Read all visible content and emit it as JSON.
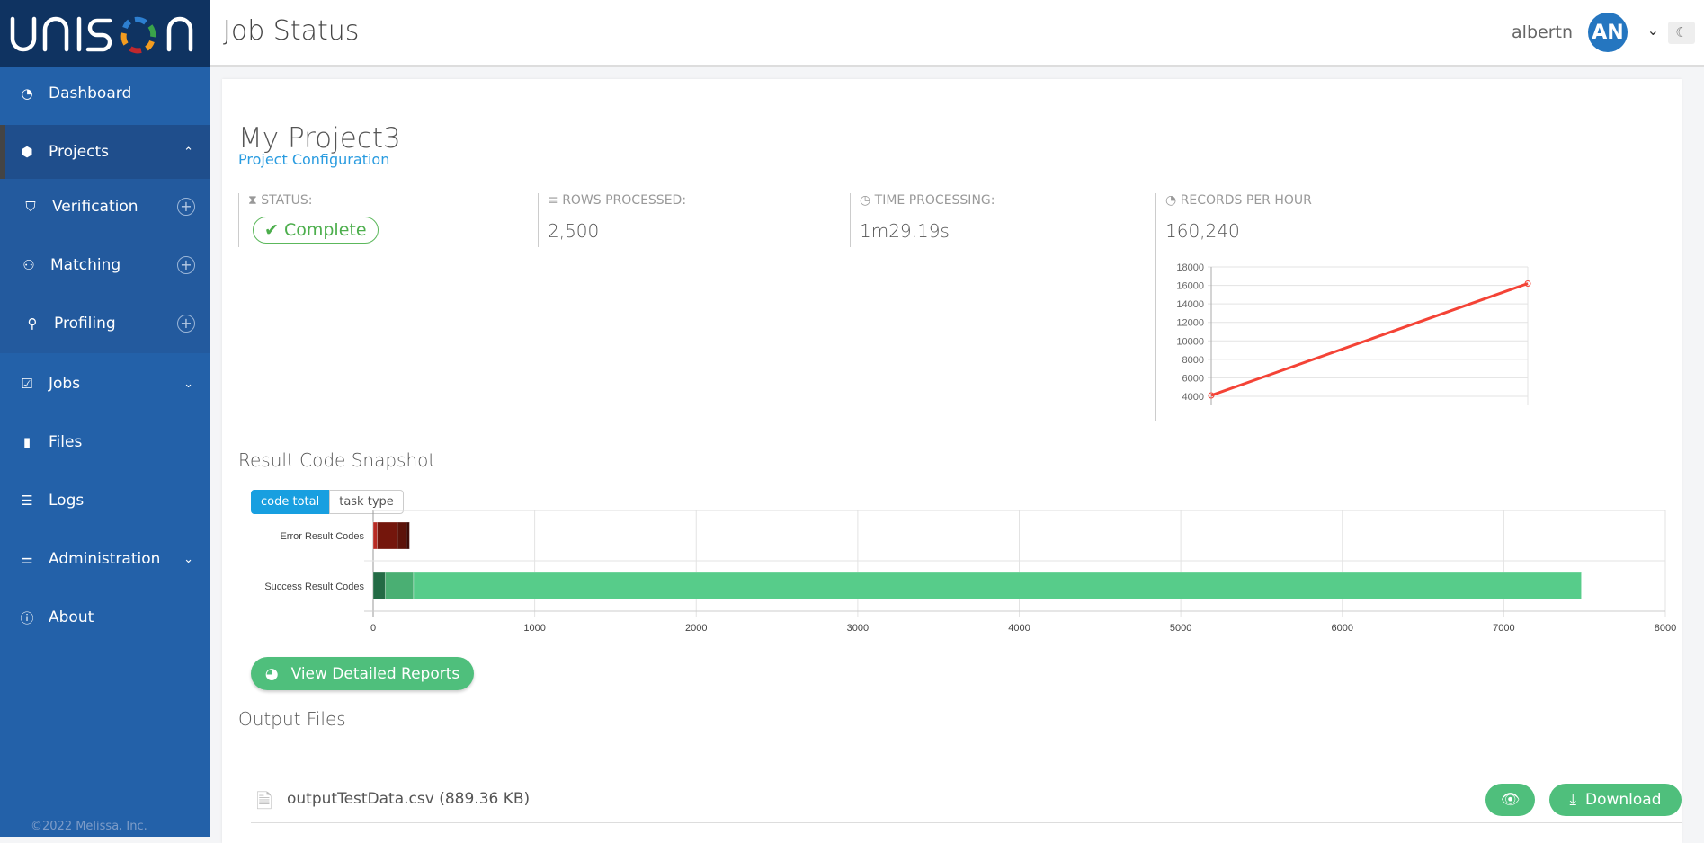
{
  "brand": {
    "logo_text": "UNISON",
    "footer": "©2022 Melissa, Inc."
  },
  "sidebar": {
    "items": [
      {
        "label": "Dashboard",
        "icon": "dashboard-icon"
      },
      {
        "label": "Projects",
        "icon": "cubes-icon",
        "expanded": true
      },
      {
        "label": "Verification",
        "icon": "shield-check-icon"
      },
      {
        "label": "Matching",
        "icon": "users-icon"
      },
      {
        "label": "Profiling",
        "icon": "user-search-icon"
      },
      {
        "label": "Jobs",
        "icon": "check-square-icon"
      },
      {
        "label": "Files",
        "icon": "file-icon"
      },
      {
        "label": "Logs",
        "icon": "list-icon"
      },
      {
        "label": "Administration",
        "icon": "sliders-icon"
      },
      {
        "label": "About",
        "icon": "info-icon"
      }
    ]
  },
  "header": {
    "title": "Job Status",
    "username": "albertn",
    "avatar_initials": "AN"
  },
  "project": {
    "name": "My Project3",
    "config_link": "Project Configuration"
  },
  "stats": [
    {
      "label": "Status:",
      "value": "Complete",
      "icon": "hourglass-icon"
    },
    {
      "label": "Rows Processed:",
      "value": "2,500",
      "icon": "bars-icon"
    },
    {
      "label": "Time Processing:",
      "value": "1m29.19s",
      "icon": "clock-icon"
    },
    {
      "label": "Records per hour",
      "value": "160,240",
      "icon": "tachometer-icon"
    }
  ],
  "chart_data": [
    {
      "type": "line",
      "ylim": [
        4000,
        18000
      ],
      "yticks": [
        18000,
        16000,
        14000,
        12000,
        10000,
        8000,
        6000,
        4000
      ],
      "x": [
        0,
        1
      ],
      "values": [
        4100,
        16200
      ],
      "color": "#f44336",
      "grid": true
    },
    {
      "type": "bar",
      "orientation": "horizontal",
      "stacked": true,
      "categories": [
        "Error Result Codes",
        "Success Result Codes"
      ],
      "segments": [
        [
          25,
          125,
          55,
          20
        ],
        [
          75,
          175,
          7230
        ]
      ],
      "colors": [
        [
          "#b72b24",
          "#74160c",
          "#5c130a",
          "#3d0a05"
        ],
        [
          "#236b45",
          "#4aaf73",
          "#57cc8a"
        ]
      ],
      "xlim": [
        0,
        8000
      ],
      "xticks": [
        0,
        1000,
        2000,
        3000,
        4000,
        5000,
        6000,
        7000,
        8000
      ],
      "grid": true
    }
  ],
  "snapshot": {
    "title": "Result Code Snapshot",
    "toggle": [
      "code total",
      "task type"
    ],
    "active": "code total"
  },
  "reports_button": "View Detailed Reports",
  "output": {
    "title": "Output Files",
    "files": [
      {
        "name": "outputTestData.csv (889.36 KB)"
      }
    ],
    "download_label": "Download"
  }
}
